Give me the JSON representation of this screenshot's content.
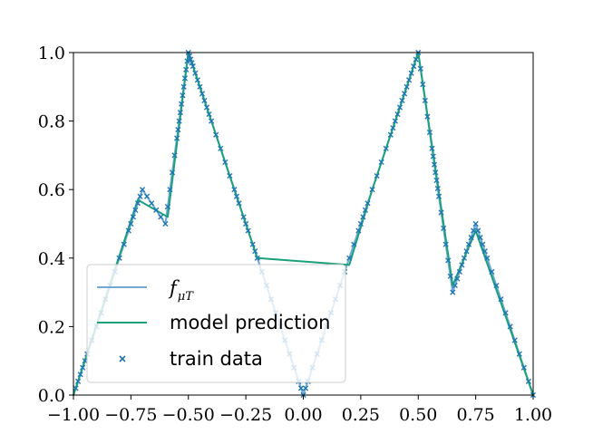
{
  "chart_data": {
    "type": "line",
    "title": "",
    "xlabel": "",
    "ylabel": "",
    "xlim": [
      -1.0,
      1.0
    ],
    "ylim": [
      0.0,
      1.0
    ],
    "xticks": [
      "−1.00",
      "−0.75",
      "−0.50",
      "−0.25",
      "0.00",
      "0.25",
      "0.50",
      "0.75",
      "1.00"
    ],
    "yticks": [
      "0.0",
      "0.2",
      "0.4",
      "0.6",
      "0.8",
      "1.0"
    ],
    "grid": false,
    "legend_position": "lower-left",
    "colors": {
      "target": "#6fa8d6",
      "model": "#1aa07a",
      "train": "#1f77b4"
    },
    "series": [
      {
        "name": "f_{μ_T}",
        "legend_main": "f",
        "legend_sub": "μT",
        "style": "line",
        "x": [
          -1.0,
          -0.7,
          -0.6,
          -0.5,
          -0.4,
          -0.3,
          -0.2,
          -0.1,
          0.0,
          0.1,
          0.2,
          0.3,
          0.4,
          0.5,
          0.65,
          0.75,
          1.0
        ],
        "y": [
          0.0,
          0.6,
          0.5,
          1.0,
          0.8,
          0.6,
          0.4,
          0.2,
          0.0,
          0.2,
          0.4,
          0.6,
          0.8,
          1.0,
          0.3,
          0.5,
          0.0
        ]
      },
      {
        "name": "model prediction",
        "style": "line",
        "x": [
          -1.0,
          -0.72,
          -0.59,
          -0.5,
          -0.4,
          -0.3,
          -0.2,
          0.2,
          0.3,
          0.4,
          0.5,
          0.65,
          0.75,
          1.0
        ],
        "y": [
          0.0,
          0.57,
          0.52,
          1.0,
          0.8,
          0.6,
          0.4,
          0.38,
          0.6,
          0.8,
          1.0,
          0.32,
          0.48,
          0.0
        ]
      },
      {
        "name": "train data",
        "style": "scatter",
        "marker": "x",
        "x": [
          -0.99,
          -0.98,
          -0.97,
          -0.96,
          -0.95,
          -0.94,
          -0.92,
          -0.9,
          -0.88,
          -0.86,
          -0.84,
          -0.82,
          -0.8,
          -0.78,
          -0.76,
          -0.75,
          -0.74,
          -0.73,
          -0.72,
          -0.71,
          -0.7,
          -0.68,
          -0.66,
          -0.64,
          -0.62,
          -0.6,
          -0.59,
          -0.58,
          -0.57,
          -0.56,
          -0.55,
          -0.545,
          -0.54,
          -0.535,
          -0.53,
          -0.525,
          -0.52,
          -0.515,
          -0.51,
          -0.505,
          -0.5,
          -0.495,
          -0.49,
          -0.485,
          -0.48,
          -0.47,
          -0.46,
          -0.45,
          -0.44,
          -0.43,
          -0.42,
          -0.41,
          -0.4,
          -0.38,
          -0.36,
          -0.34,
          -0.32,
          -0.3,
          -0.29,
          -0.28,
          -0.26,
          -0.25,
          -0.24,
          -0.22,
          -0.21,
          -0.2,
          -0.18,
          -0.16,
          -0.14,
          -0.12,
          -0.1,
          -0.08,
          -0.06,
          -0.04,
          -0.02,
          -0.01,
          0.0,
          0.01,
          0.02,
          0.04,
          0.06,
          0.08,
          0.1,
          0.12,
          0.14,
          0.16,
          0.18,
          0.2,
          0.22,
          0.24,
          0.25,
          0.26,
          0.27,
          0.28,
          0.3,
          0.32,
          0.34,
          0.36,
          0.38,
          0.39,
          0.4,
          0.41,
          0.42,
          0.43,
          0.44,
          0.45,
          0.46,
          0.47,
          0.48,
          0.49,
          0.5,
          0.51,
          0.52,
          0.53,
          0.54,
          0.55,
          0.56,
          0.565,
          0.57,
          0.575,
          0.58,
          0.585,
          0.59,
          0.6,
          0.61,
          0.62,
          0.63,
          0.64,
          0.65,
          0.66,
          0.67,
          0.68,
          0.69,
          0.7,
          0.71,
          0.72,
          0.73,
          0.74,
          0.75,
          0.76,
          0.77,
          0.78,
          0.79,
          0.8,
          0.82,
          0.84,
          0.86,
          0.88,
          0.9,
          0.92,
          0.94,
          0.96,
          0.98,
          1.0
        ],
        "y": [
          0.02,
          0.04,
          0.06,
          0.08,
          0.1,
          0.12,
          0.16,
          0.2,
          0.24,
          0.28,
          0.32,
          0.36,
          0.4,
          0.44,
          0.48,
          0.5,
          0.52,
          0.54,
          0.56,
          0.58,
          0.6,
          0.58,
          0.56,
          0.54,
          0.52,
          0.5,
          0.55,
          0.6,
          0.65,
          0.7,
          0.75,
          0.775,
          0.8,
          0.825,
          0.85,
          0.875,
          0.9,
          0.925,
          0.95,
          0.975,
          1.0,
          0.99,
          0.98,
          0.97,
          0.96,
          0.94,
          0.92,
          0.9,
          0.88,
          0.86,
          0.84,
          0.82,
          0.8,
          0.76,
          0.72,
          0.68,
          0.64,
          0.6,
          0.58,
          0.56,
          0.52,
          0.5,
          0.48,
          0.44,
          0.42,
          0.4,
          0.36,
          0.32,
          0.28,
          0.24,
          0.2,
          0.16,
          0.12,
          0.08,
          0.04,
          0.02,
          0.0,
          0.02,
          0.04,
          0.08,
          0.12,
          0.16,
          0.2,
          0.24,
          0.28,
          0.32,
          0.36,
          0.4,
          0.44,
          0.48,
          0.5,
          0.52,
          0.54,
          0.56,
          0.6,
          0.64,
          0.68,
          0.72,
          0.76,
          0.78,
          0.8,
          0.82,
          0.84,
          0.86,
          0.88,
          0.9,
          0.92,
          0.94,
          0.96,
          0.98,
          1.0,
          0.953,
          0.907,
          0.86,
          0.813,
          0.767,
          0.72,
          0.697,
          0.673,
          0.65,
          0.627,
          0.603,
          0.58,
          0.533,
          0.487,
          0.44,
          0.393,
          0.347,
          0.3,
          0.32,
          0.34,
          0.36,
          0.38,
          0.4,
          0.42,
          0.44,
          0.46,
          0.48,
          0.5,
          0.48,
          0.46,
          0.44,
          0.42,
          0.4,
          0.36,
          0.32,
          0.28,
          0.24,
          0.2,
          0.16,
          0.12,
          0.08,
          0.04,
          0.0
        ]
      }
    ]
  }
}
